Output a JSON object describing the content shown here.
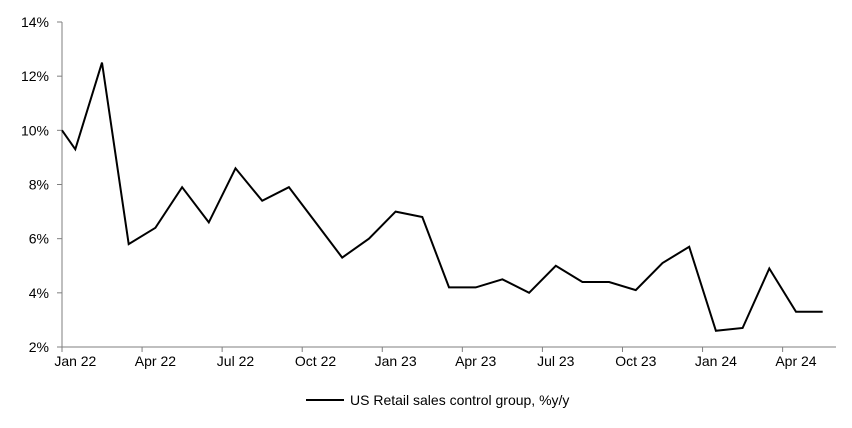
{
  "chart_data": {
    "type": "line",
    "title": "",
    "categories": [
      "Jan 22",
      "Feb 22",
      "Mar 22",
      "Apr 22",
      "May 22",
      "Jun 22",
      "Jul 22",
      "Aug 22",
      "Sep 22",
      "Oct 22",
      "Nov 22",
      "Dec 22",
      "Jan 23",
      "Feb 23",
      "Mar 23",
      "Apr 23",
      "May 23",
      "Jun 23",
      "Jul 23",
      "Aug 23",
      "Sep 23",
      "Oct 23",
      "Nov 23",
      "Dec 23",
      "Jan 24",
      "Feb 24",
      "Mar 24",
      "Apr 24",
      "May 24"
    ],
    "series": [
      {
        "name": "US Retail sales control group, %y/y",
        "color": "#000000",
        "values": [
          9.3,
          12.5,
          5.8,
          6.4,
          7.9,
          6.6,
          8.6,
          7.4,
          7.9,
          6.6,
          5.3,
          6.0,
          7.0,
          6.8,
          4.2,
          4.2,
          4.5,
          4.0,
          5.0,
          4.4,
          4.4,
          4.1,
          5.1,
          5.7,
          2.6,
          2.7,
          4.9,
          3.3,
          3.3
        ]
      }
    ],
    "clip_start_value": 10.0,
    "ylim": [
      2,
      14
    ],
    "y_ticks": [
      "2%",
      "4%",
      "6%",
      "8%",
      "10%",
      "12%",
      "14%"
    ],
    "x_tick_labels": [
      "Jan 22",
      "Apr 22",
      "Jul 22",
      "Oct 22",
      "Jan 23",
      "Apr 23",
      "Jul 23",
      "Oct 23",
      "Jan 24",
      "Apr 24"
    ],
    "x_tick_interval": 3,
    "grid": false,
    "legend_position": "bottom",
    "axis_color": "#7f7f7f",
    "background": "#ffffff",
    "line_width": 2
  }
}
